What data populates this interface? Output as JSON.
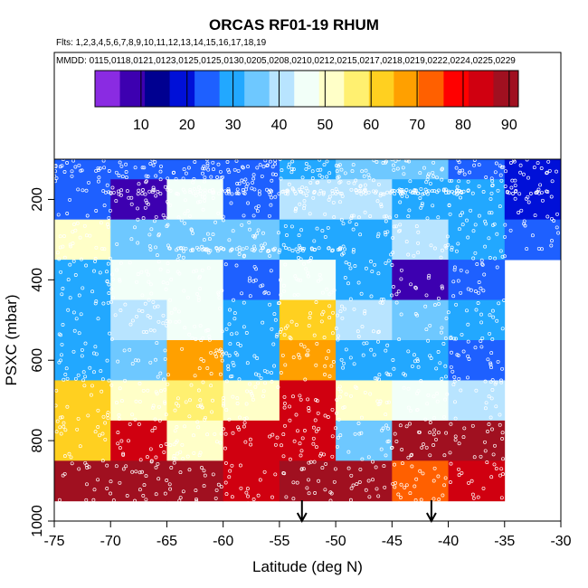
{
  "chart_data": {
    "type": "heatmap",
    "title": "ORCAS RF01-19 RHUM",
    "flights_label": "Flts: 1,2,3,4,5,6,7,8,9,10,11,12,13,14,15,16,17,18,19",
    "mmdd_label": "MMDD: 0115,0118,0121,0123,0125,0125,0130,0205,0208,0210,0212,0215,0217,0218,0219,0222,0224,0225,0229",
    "xlabel": "Latitude (deg N)",
    "ylabel": "PSXC (mbar)",
    "xlim": [
      -75,
      -30
    ],
    "ylim": [
      1000,
      100
    ],
    "x_ticks": [
      -75,
      -70,
      -65,
      -60,
      -55,
      -50,
      -45,
      -40,
      -35,
      -30
    ],
    "y_ticks": [
      200,
      400,
      600,
      800,
      1000
    ],
    "colorbar": {
      "range": [
        0,
        92
      ],
      "ticks": [
        10,
        20,
        30,
        40,
        50,
        60,
        70,
        80,
        90
      ],
      "colors": [
        "#8A2BE2",
        "#3D00B0",
        "#000090",
        "#0010D8",
        "#1E60FF",
        "#22A8FF",
        "#6EC8FF",
        "#B8E4FF",
        "#F2FFF8",
        "#FFFFC8",
        "#FFF070",
        "#FFD020",
        "#FFA000",
        "#FF6000",
        "#FF0000",
        "#D00010",
        "#A01020"
      ]
    },
    "lat_bins": [
      -75,
      -70,
      -65,
      -60,
      -55,
      -50,
      -45,
      -40,
      -35,
      -30
    ],
    "pressure_bins": [
      100,
      150,
      250,
      350,
      450,
      550,
      650,
      750,
      850,
      950
    ],
    "cells": [
      [
        22,
        25,
        25,
        24,
        28,
        33,
        34,
        27,
        17
      ],
      [
        26,
        9,
        44,
        27,
        43,
        38,
        31,
        31,
        20
      ],
      [
        52,
        33,
        33,
        35,
        32,
        32,
        39,
        29,
        26
      ],
      [
        32,
        45,
        45,
        27,
        46,
        29,
        9,
        23,
        null
      ],
      [
        32,
        40,
        44,
        31,
        61,
        40,
        33,
        28,
        null
      ],
      [
        32,
        36,
        68,
        32,
        66,
        32,
        31,
        26,
        null
      ],
      [
        60,
        53,
        57,
        54,
        86,
        53,
        48,
        38,
        null
      ],
      [
        63,
        86,
        53,
        84,
        85,
        33,
        91,
        91,
        null
      ],
      [
        88,
        90,
        87,
        86,
        90,
        87,
        71,
        86,
        null
      ]
    ],
    "arrow_latitudes": [
      -53,
      -41.5
    ]
  }
}
